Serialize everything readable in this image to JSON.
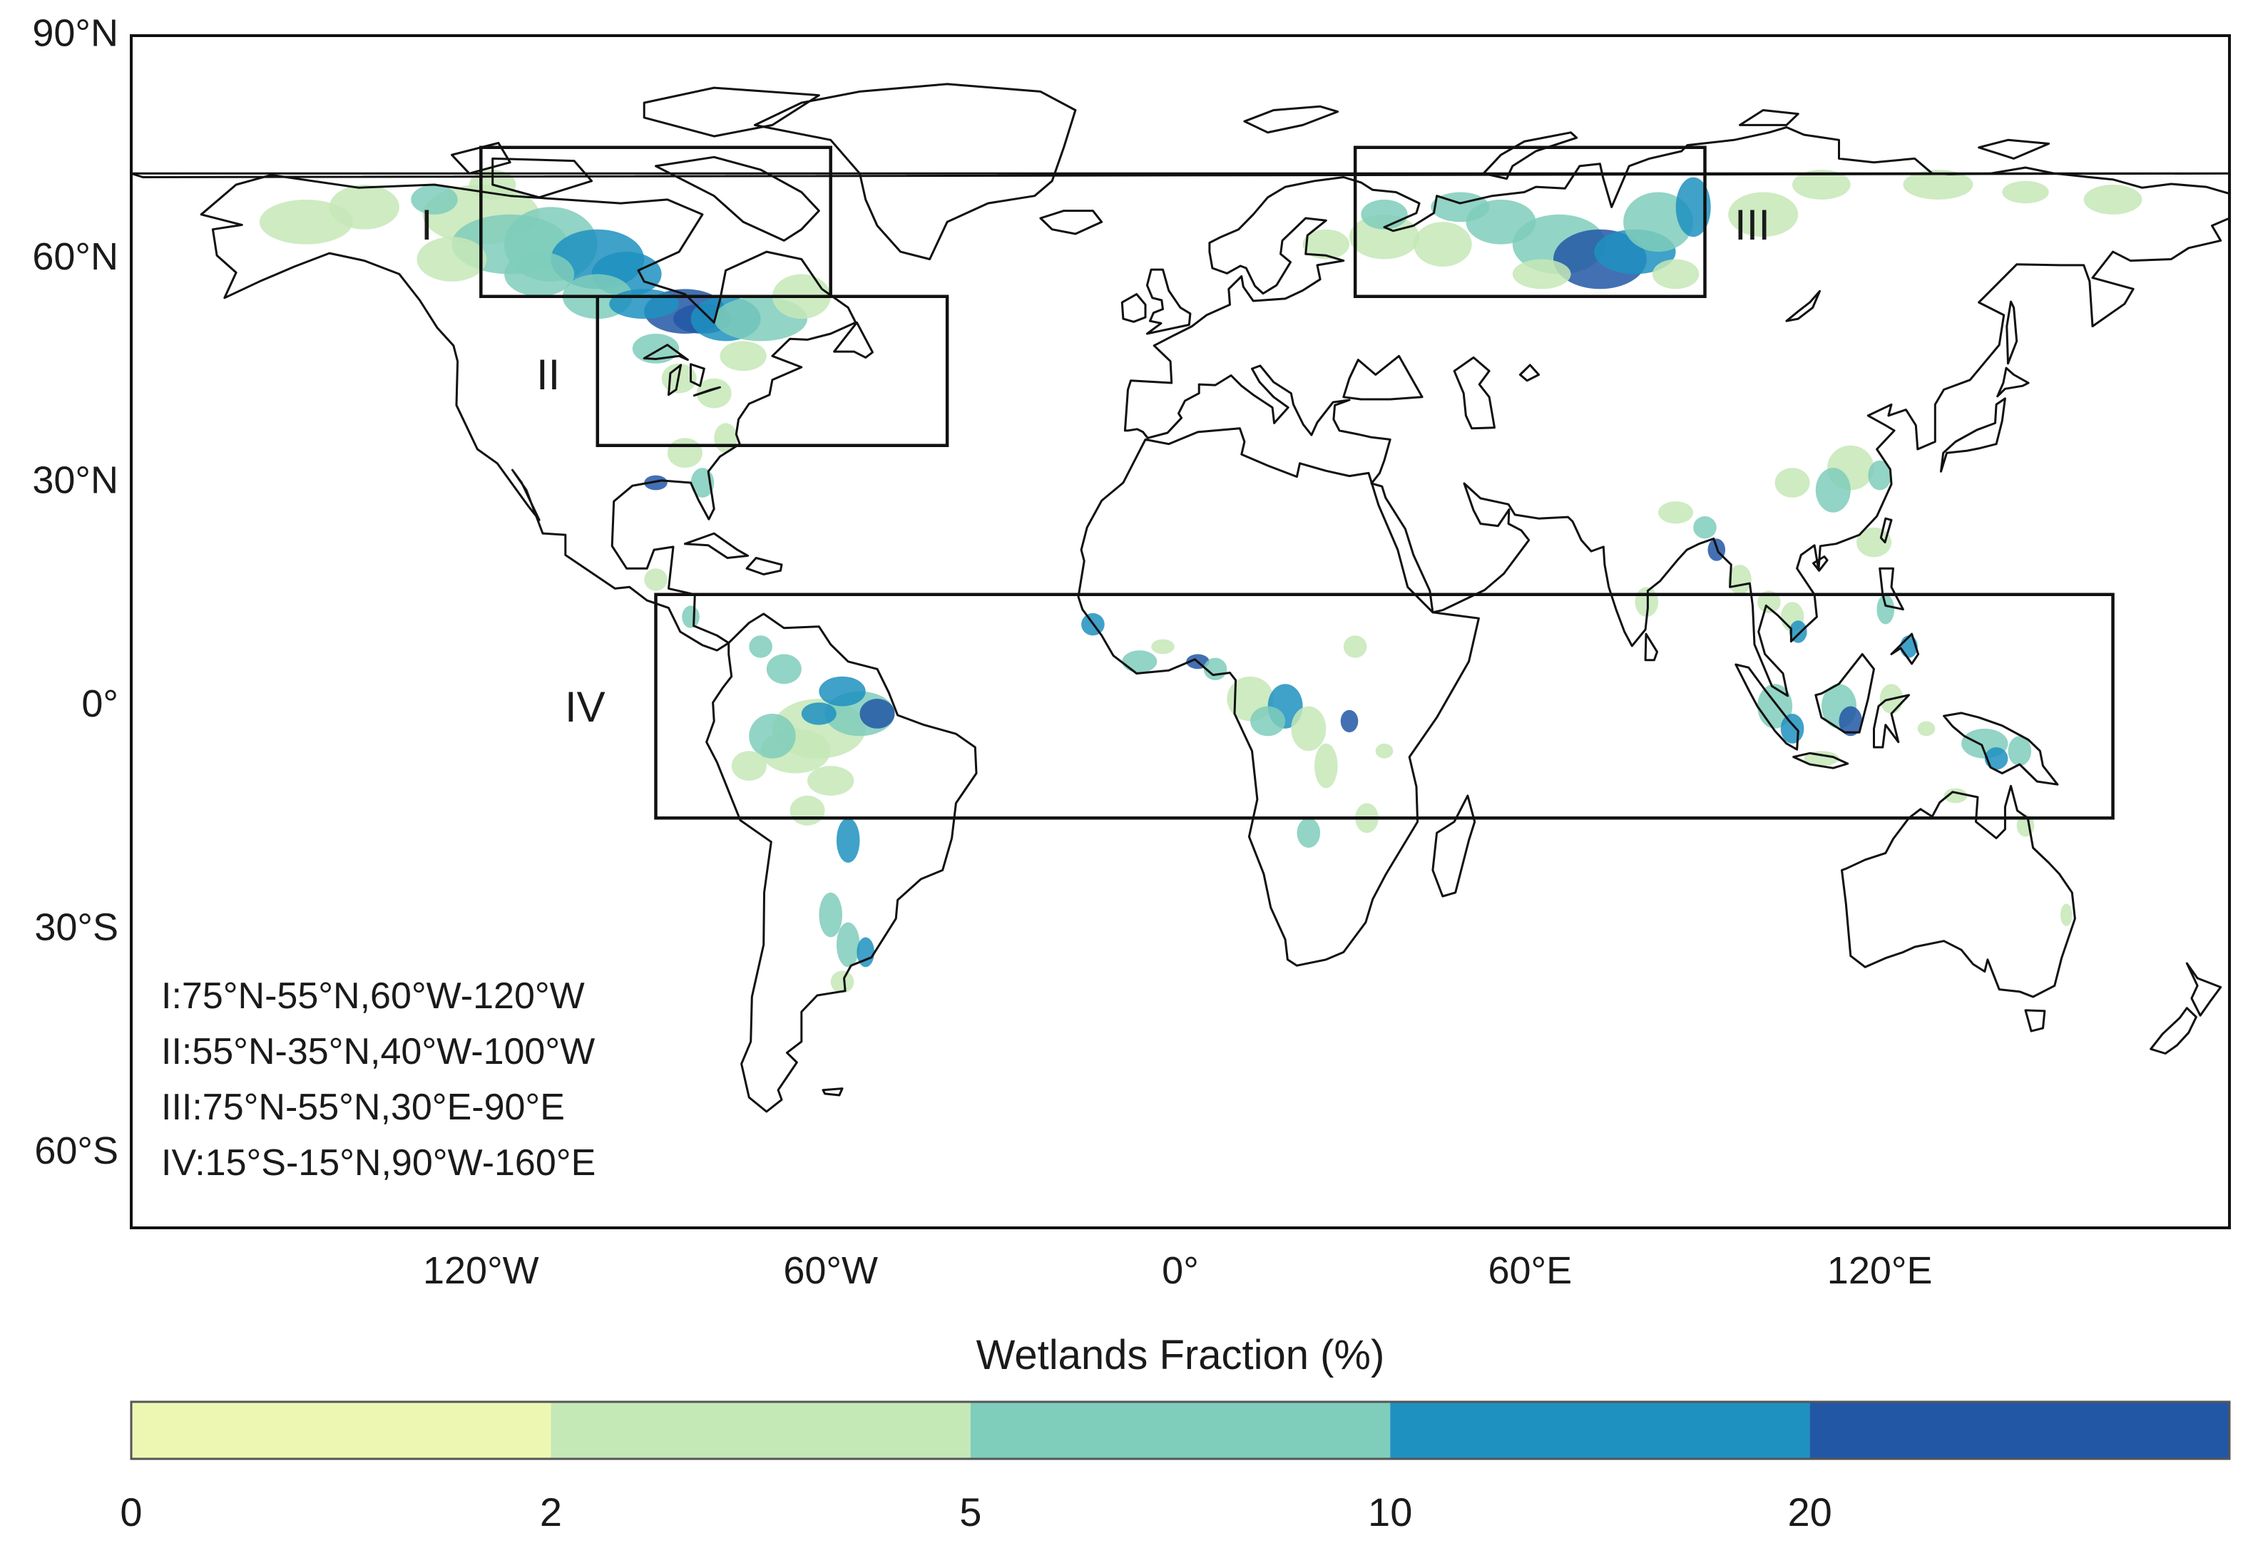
{
  "map": {
    "projection": "equirectangular",
    "lon_range": [
      -180,
      180
    ],
    "lat_range": [
      -70,
      90
    ],
    "lat_ticks": [
      {
        "value": 90,
        "label": "90°N"
      },
      {
        "value": 60,
        "label": "60°N"
      },
      {
        "value": 30,
        "label": "30°N"
      },
      {
        "value": 0,
        "label": "0°"
      },
      {
        "value": -30,
        "label": "30°S"
      },
      {
        "value": -60,
        "label": "60°S"
      }
    ],
    "lon_ticks": [
      {
        "value": -120,
        "label": "120°W"
      },
      {
        "value": -60,
        "label": "60°W"
      },
      {
        "value": 0,
        "label": "0°"
      },
      {
        "value": 60,
        "label": "60°E"
      },
      {
        "value": 120,
        "label": "120°E"
      }
    ],
    "regions": [
      {
        "id": "I",
        "tag": "I",
        "lat": [
          55,
          75
        ],
        "lon": [
          -120,
          -60
        ],
        "description": "I:75°N-55°N,60°W-120°W"
      },
      {
        "id": "II",
        "tag": "II",
        "lat": [
          35,
          55
        ],
        "lon": [
          -100,
          -40
        ],
        "description": "II:55°N-35°N,40°W-100°W"
      },
      {
        "id": "III",
        "tag": "III",
        "lat": [
          55,
          75
        ],
        "lon": [
          30,
          90
        ],
        "description": "III:75°N-55°N,30°E-90°E"
      },
      {
        "id": "IV",
        "tag": "IV",
        "lat": [
          -15,
          15
        ],
        "lon": [
          -90,
          160
        ],
        "description": "IV:15°S-15°N,90°W-160°E"
      }
    ]
  },
  "colorbar": {
    "title": "Wetlands Fraction (%)",
    "tick_labels": [
      "0",
      "2",
      "5",
      "10",
      "20"
    ],
    "colors": [
      "#eef7b2",
      "#c5e8b7",
      "#7fcdbb",
      "#1f91c0",
      "#2257a5"
    ]
  }
}
